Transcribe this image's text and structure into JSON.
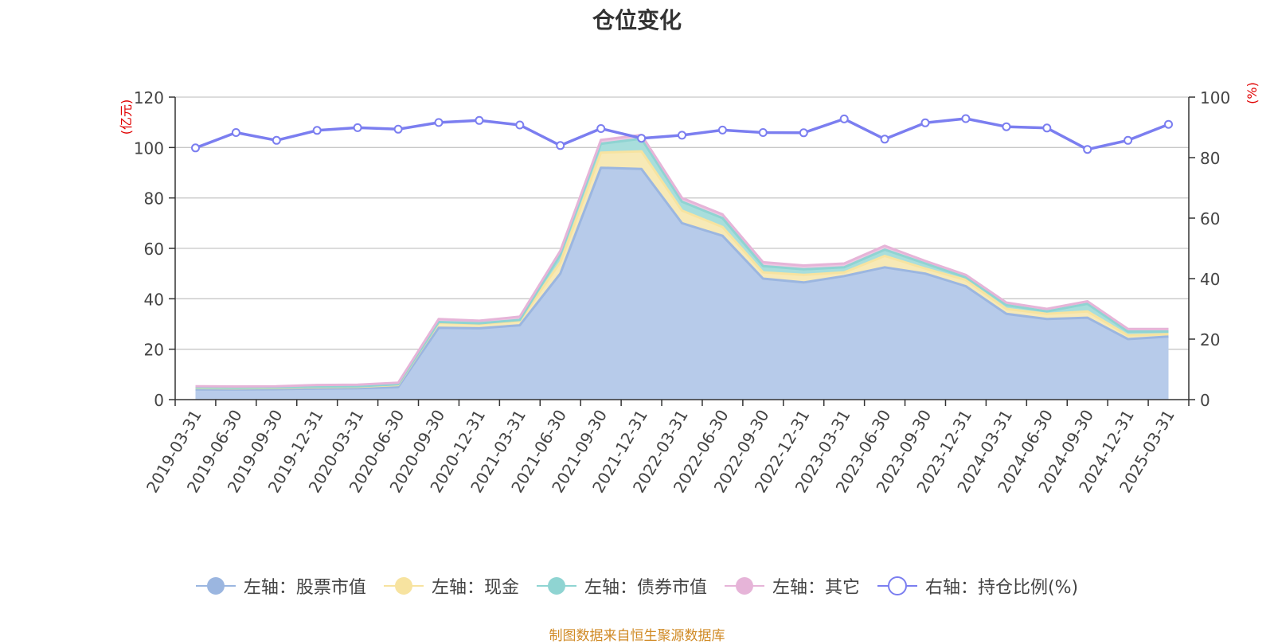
{
  "chart_data": {
    "type": "area",
    "title": "仓位变化",
    "stacked": true,
    "left_unit": "(亿元)",
    "right_unit": "(%)",
    "left_ylim": [
      0,
      120
    ],
    "left_ticks": [
      0,
      20,
      40,
      60,
      80,
      100,
      120
    ],
    "right_ylim": [
      0,
      100
    ],
    "right_ticks": [
      0,
      20,
      40,
      60,
      80,
      100
    ],
    "categories": [
      "2019-03-31",
      "2019-06-30",
      "2019-09-30",
      "2019-12-31",
      "2020-03-31",
      "2020-06-30",
      "2020-09-30",
      "2020-12-31",
      "2021-03-31",
      "2021-06-30",
      "2021-09-30",
      "2021-12-31",
      "2022-03-31",
      "2022-06-30",
      "2022-09-30",
      "2022-12-31",
      "2023-03-31",
      "2023-06-30",
      "2023-09-30",
      "2023-12-31",
      "2024-03-31",
      "2024-06-30",
      "2024-09-30",
      "2024-12-31",
      "2025-03-31"
    ],
    "series": [
      {
        "name": "左轴：股票市值",
        "axis": "left",
        "type": "area",
        "color": "#9bb6e0",
        "fill": "#b7cbea",
        "values": [
          4.0,
          4.0,
          4.1,
          4.4,
          4.5,
          5.0,
          28.5,
          28.3,
          29.5,
          50.0,
          92.0,
          91.5,
          70.0,
          65.0,
          48.0,
          46.5,
          49.0,
          52.5,
          50.0,
          45.0,
          34.0,
          32.0,
          32.5,
          24.0,
          25.0
        ]
      },
      {
        "name": "左轴：现金",
        "axis": "left",
        "type": "area",
        "color": "#f7e3a0",
        "fill": "#f7e9b6",
        "values": [
          0.6,
          0.5,
          0.5,
          0.6,
          0.6,
          0.8,
          2.0,
          1.7,
          1.8,
          4.5,
          6.0,
          7.0,
          5.0,
          3.5,
          2.5,
          3.0,
          1.5,
          4.5,
          2.0,
          2.5,
          2.0,
          2.0,
          2.5,
          1.5,
          1.0
        ]
      },
      {
        "name": "左轴：债券市值",
        "axis": "left",
        "type": "area",
        "color": "#8fd4d2",
        "fill": "#a8dedc",
        "values": [
          0.2,
          0.2,
          0.2,
          0.2,
          0.2,
          0.3,
          0.3,
          0.3,
          0.3,
          3.0,
          3.5,
          5.0,
          3.5,
          3.5,
          2.5,
          2.2,
          2.0,
          2.5,
          2.0,
          1.0,
          1.5,
          1.0,
          3.0,
          1.5,
          1.0
        ]
      },
      {
        "name": "左轴：其它",
        "axis": "left",
        "type": "area",
        "color": "#e6b4d8",
        "fill": "#ecc8e2",
        "values": [
          0.5,
          0.5,
          0.5,
          0.6,
          0.6,
          0.6,
          1.2,
          1.0,
          1.3,
          1.5,
          1.5,
          1.5,
          1.5,
          1.5,
          1.5,
          1.5,
          1.5,
          1.5,
          1.0,
          1.0,
          1.0,
          1.0,
          1.0,
          1.0,
          1.0
        ]
      },
      {
        "name": "右轴：持仓比例(%)",
        "axis": "right",
        "type": "line",
        "color": "#7b7ef0",
        "values": [
          83.2,
          88.3,
          85.7,
          89.0,
          89.9,
          89.4,
          91.6,
          92.3,
          90.8,
          84.0,
          89.6,
          86.4,
          87.4,
          89.1,
          88.3,
          88.2,
          92.8,
          86.1,
          91.5,
          92.9,
          90.2,
          89.8,
          82.7,
          85.7,
          91.0
        ]
      }
    ]
  },
  "source_note": "制图数据来自恒生聚源数据库"
}
